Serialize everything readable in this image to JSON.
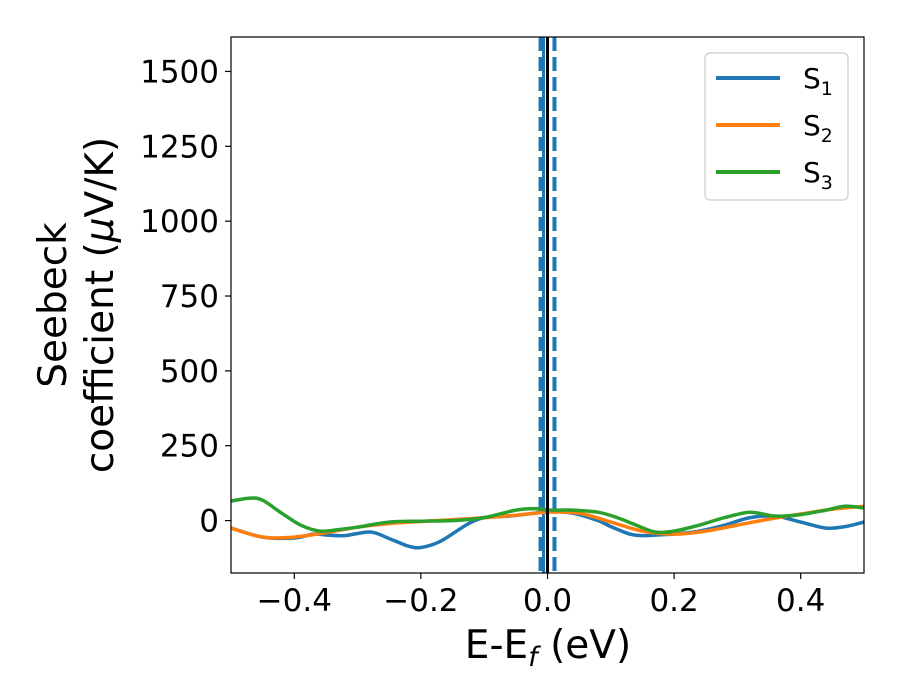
{
  "chart_data": {
    "type": "line",
    "xlabel": "E-E",
    "xlabel_sub": "f",
    "xlabel_suffix": " (eV)",
    "ylabel_line1": "Seebeck",
    "ylabel_line2": "coefficient  (",
    "ylabel_mu": "μ",
    "ylabel_line2_end": "V/K)",
    "xlim": [
      -0.5,
      0.5
    ],
    "ylim": [
      -175,
      1615
    ],
    "xticks": [
      -0.4,
      -0.2,
      0.0,
      0.2,
      0.4
    ],
    "xtick_labels": [
      "−0.4",
      "−0.2",
      "0.0",
      "0.2",
      "0.4"
    ],
    "yticks": [
      0,
      250,
      500,
      750,
      1000,
      1250,
      1500
    ],
    "ytick_labels": [
      "0",
      "250",
      "500",
      "750",
      "1000",
      "1250",
      "1500"
    ],
    "legend_position": "top-right",
    "fermi_line": {
      "x": 0.0,
      "color": "#000000"
    },
    "spike_lines": {
      "x": [
        -0.011,
        0.011
      ],
      "color": "#1f77b4",
      "style": "dashed"
    },
    "series": [
      {
        "name": "S",
        "name_sub": "1",
        "color": "#1f77b4",
        "x": [
          -0.5,
          -0.45,
          -0.4,
          -0.37,
          -0.35,
          -0.32,
          -0.28,
          -0.25,
          -0.22,
          -0.2,
          -0.17,
          -0.14,
          -0.12,
          -0.1,
          -0.06,
          -0.02,
          0.0,
          0.04,
          0.08,
          0.1,
          0.13,
          0.15,
          0.18,
          0.2,
          0.24,
          0.28,
          0.32,
          0.36,
          0.4,
          0.44,
          0.47,
          0.5
        ],
        "y": [
          -25,
          -55,
          -58,
          -45,
          -48,
          -50,
          -38,
          -60,
          -85,
          -90,
          -70,
          -30,
          -5,
          10,
          15,
          25,
          30,
          25,
          0,
          -20,
          -45,
          -50,
          -47,
          -45,
          -35,
          -15,
          10,
          15,
          -5,
          -25,
          -20,
          -5
        ]
      },
      {
        "name": "S",
        "name_sub": "2",
        "color": "#ff7f0e",
        "x": [
          -0.5,
          -0.45,
          -0.4,
          -0.35,
          -0.3,
          -0.25,
          -0.2,
          -0.15,
          -0.1,
          -0.05,
          0.0,
          0.05,
          0.1,
          0.15,
          0.2,
          0.25,
          0.3,
          0.35,
          0.4,
          0.45,
          0.5
        ],
        "y": [
          -25,
          -55,
          -55,
          -40,
          -22,
          -10,
          -3,
          3,
          10,
          18,
          28,
          25,
          -5,
          -35,
          -45,
          -35,
          -15,
          5,
          22,
          38,
          48
        ]
      },
      {
        "name": "S",
        "name_sub": "3",
        "color": "#2ca02c",
        "x": [
          -0.5,
          -0.47,
          -0.45,
          -0.42,
          -0.39,
          -0.36,
          -0.33,
          -0.3,
          -0.25,
          -0.2,
          -0.15,
          -0.1,
          -0.05,
          -0.02,
          0.0,
          0.04,
          0.08,
          0.11,
          0.14,
          0.17,
          0.2,
          0.24,
          0.28,
          0.32,
          0.36,
          0.4,
          0.44,
          0.47,
          0.5
        ],
        "y": [
          65,
          75,
          68,
          25,
          -15,
          -35,
          -30,
          -22,
          -5,
          -2,
          0,
          10,
          35,
          40,
          35,
          35,
          28,
          10,
          -15,
          -38,
          -35,
          -15,
          10,
          28,
          15,
          20,
          35,
          48,
          42
        ]
      }
    ]
  }
}
